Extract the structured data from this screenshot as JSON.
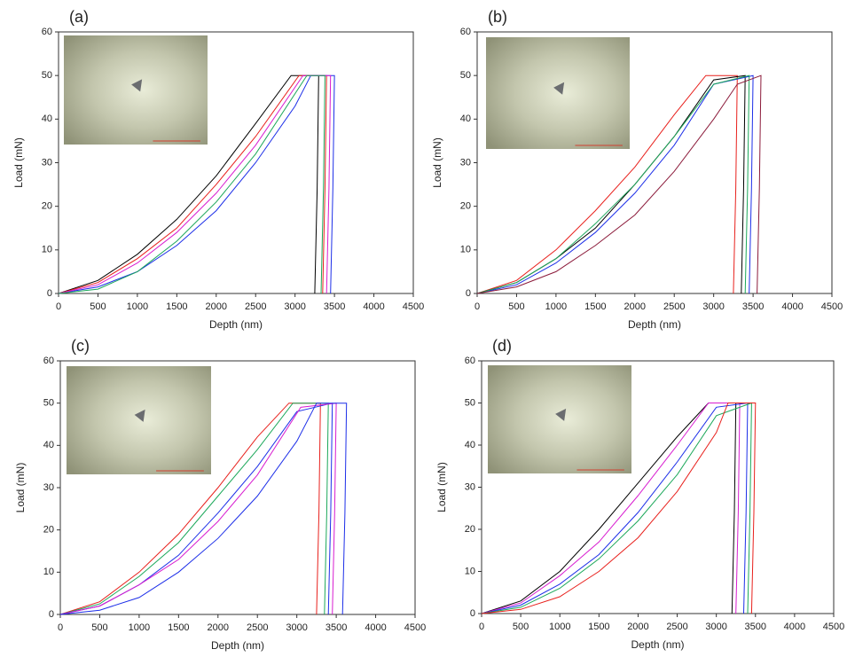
{
  "chart_data": [
    {
      "type": "line",
      "title": "(a)",
      "xlabel": "Depth (nm)",
      "ylabel": "Load (mN)",
      "xlim": [
        0,
        4500
      ],
      "xticks": [
        0,
        500,
        1000,
        1500,
        2000,
        2500,
        3000,
        3500,
        4000,
        4500
      ],
      "ylim": [
        0,
        60
      ],
      "yticks": [
        0,
        10,
        20,
        30,
        40,
        50,
        60
      ],
      "series": [
        {
          "color": "#000000",
          "x": [
            0,
            500,
            1000,
            1500,
            2000,
            2500,
            2950,
            3300,
            3280,
            3250
          ],
          "values": [
            0,
            3,
            9,
            17,
            27,
            39,
            50,
            50,
            24,
            0
          ]
        },
        {
          "color": "#e8201c",
          "x": [
            0,
            500,
            1000,
            1500,
            2000,
            2500,
            3050,
            3400,
            3380,
            3350
          ],
          "values": [
            0,
            2.5,
            8,
            15,
            25,
            36,
            50,
            50,
            24,
            0
          ]
        },
        {
          "color": "#1c2ee8",
          "x": [
            0,
            500,
            1000,
            1500,
            2000,
            2500,
            3000,
            3200,
            3500,
            3480,
            3450
          ],
          "values": [
            0,
            1.5,
            5,
            11,
            19,
            30,
            43,
            50,
            50,
            24,
            0
          ]
        },
        {
          "color": "#d81cd0",
          "x": [
            0,
            500,
            1000,
            1500,
            2000,
            2500,
            3100,
            3450,
            3430,
            3400
          ],
          "values": [
            0,
            2,
            7,
            14,
            23,
            34,
            50,
            50,
            24,
            0
          ]
        },
        {
          "color": "#1ca85a",
          "x": [
            0,
            500,
            1000,
            1500,
            2000,
            2500,
            3150,
            3380,
            3360,
            3330
          ],
          "values": [
            0,
            1,
            5,
            12,
            21,
            32,
            50,
            50,
            24,
            0
          ]
        }
      ]
    },
    {
      "type": "line",
      "title": "(b)",
      "xlabel": "Depth (nm)",
      "ylabel": "Load (mN)",
      "xlim": [
        0,
        4500
      ],
      "xticks": [
        0,
        500,
        1000,
        1500,
        2000,
        2500,
        3000,
        3500,
        4000,
        4500
      ],
      "ylim": [
        0,
        60
      ],
      "yticks": [
        0,
        10,
        20,
        30,
        40,
        50,
        60
      ],
      "series": [
        {
          "color": "#e8201c",
          "x": [
            0,
            500,
            1000,
            1500,
            2000,
            2500,
            2900,
            3300,
            3280,
            3250
          ],
          "values": [
            0,
            3,
            10,
            19,
            29,
            41,
            50,
            50,
            24,
            0
          ]
        },
        {
          "color": "#000000",
          "x": [
            0,
            500,
            1000,
            1500,
            2000,
            2500,
            3000,
            3400,
            3380,
            3350
          ],
          "values": [
            0,
            2.5,
            8,
            15,
            25,
            36,
            49,
            50,
            24,
            0
          ]
        },
        {
          "color": "#1c2ee8",
          "x": [
            0,
            500,
            1000,
            1500,
            2000,
            2500,
            3000,
            3500,
            3480,
            3450
          ],
          "values": [
            0,
            2,
            7,
            14,
            23,
            34,
            48,
            50,
            24,
            0
          ]
        },
        {
          "color": "#1ca85a",
          "x": [
            0,
            500,
            1000,
            1500,
            2000,
            2500,
            3000,
            3450,
            3430,
            3400
          ],
          "values": [
            0,
            2.5,
            8,
            16,
            25,
            36,
            48,
            50,
            24,
            0
          ]
        },
        {
          "color": "#8b1a3a",
          "x": [
            0,
            500,
            1000,
            1500,
            2000,
            2500,
            3000,
            3300,
            3600,
            3580,
            3550
          ],
          "values": [
            0,
            1.5,
            5,
            11,
            18,
            28,
            40,
            48,
            50,
            24,
            0
          ]
        }
      ]
    },
    {
      "type": "line",
      "title": "(c)",
      "xlabel": "Depth (nm)",
      "ylabel": "Load (mN)",
      "xlim": [
        0,
        4500
      ],
      "xticks": [
        0,
        500,
        1000,
        1500,
        2000,
        2500,
        3000,
        3500,
        4000,
        4500
      ],
      "ylim": [
        0,
        60
      ],
      "yticks": [
        0,
        10,
        20,
        30,
        40,
        50,
        60
      ],
      "series": [
        {
          "color": "#e8201c",
          "x": [
            0,
            500,
            1000,
            1500,
            2000,
            2500,
            2900,
            3300,
            3280,
            3250
          ],
          "values": [
            0,
            3,
            10,
            19,
            30,
            42,
            50,
            50,
            24,
            0
          ]
        },
        {
          "color": "#1ca85a",
          "x": [
            0,
            500,
            1000,
            1500,
            2000,
            2500,
            2950,
            3400,
            3380,
            3350
          ],
          "values": [
            0,
            2.5,
            9,
            17,
            28,
            39,
            50,
            50,
            24,
            0
          ]
        },
        {
          "color": "#1c2ee8",
          "x": [
            0,
            500,
            1000,
            1500,
            2000,
            2500,
            3000,
            3450,
            3430,
            3400
          ],
          "values": [
            0,
            2,
            7,
            14,
            24,
            35,
            48,
            50,
            24,
            0
          ]
        },
        {
          "color": "#d81cd0",
          "x": [
            0,
            500,
            1000,
            1500,
            2000,
            2500,
            3050,
            3500,
            3480,
            3450
          ],
          "values": [
            0,
            2,
            7,
            13,
            22,
            33,
            49,
            50,
            24,
            0
          ]
        },
        {
          "color": "#1c2ee8",
          "x": [
            0,
            500,
            1000,
            1500,
            2000,
            2500,
            3000,
            3250,
            3630,
            3610,
            3580
          ],
          "values": [
            0,
            1,
            4,
            10,
            18,
            28,
            41,
            50,
            50,
            24,
            0
          ]
        }
      ]
    },
    {
      "type": "line",
      "title": "(d)",
      "xlabel": "Depth (nm)",
      "ylabel": "Load (mN)",
      "xlim": [
        0,
        4500
      ],
      "xticks": [
        0,
        500,
        1000,
        1500,
        2000,
        2500,
        3000,
        3500,
        4000,
        4500
      ],
      "ylim": [
        0,
        60
      ],
      "yticks": [
        0,
        10,
        20,
        30,
        40,
        50,
        60
      ],
      "series": [
        {
          "color": "#000000",
          "x": [
            0,
            500,
            1000,
            1500,
            2000,
            2500,
            2900,
            3250,
            3230,
            3200
          ],
          "values": [
            0,
            3,
            10,
            20,
            31,
            42,
            50,
            50,
            24,
            0
          ]
        },
        {
          "color": "#d81cd0",
          "x": [
            0,
            500,
            1000,
            1500,
            2000,
            2500,
            2900,
            3300,
            3280,
            3250
          ],
          "values": [
            0,
            2.5,
            9,
            17,
            28,
            40,
            50,
            50,
            24,
            0
          ]
        },
        {
          "color": "#1c2ee8",
          "x": [
            0,
            500,
            1000,
            1500,
            2000,
            2500,
            3000,
            3400,
            3380,
            3350
          ],
          "values": [
            0,
            2,
            7,
            14,
            24,
            36,
            49,
            50,
            24,
            0
          ]
        },
        {
          "color": "#1ca85a",
          "x": [
            0,
            500,
            1000,
            1500,
            2000,
            2500,
            3000,
            3450,
            3430,
            3400
          ],
          "values": [
            0,
            1.5,
            6,
            13,
            22,
            33,
            47,
            50,
            24,
            0
          ]
        },
        {
          "color": "#e8201c",
          "x": [
            0,
            500,
            1000,
            1500,
            2000,
            2500,
            3000,
            3150,
            3500,
            3480,
            3450
          ],
          "values": [
            0,
            1,
            4,
            10,
            18,
            29,
            43,
            50,
            50,
            24,
            0
          ]
        }
      ]
    }
  ]
}
